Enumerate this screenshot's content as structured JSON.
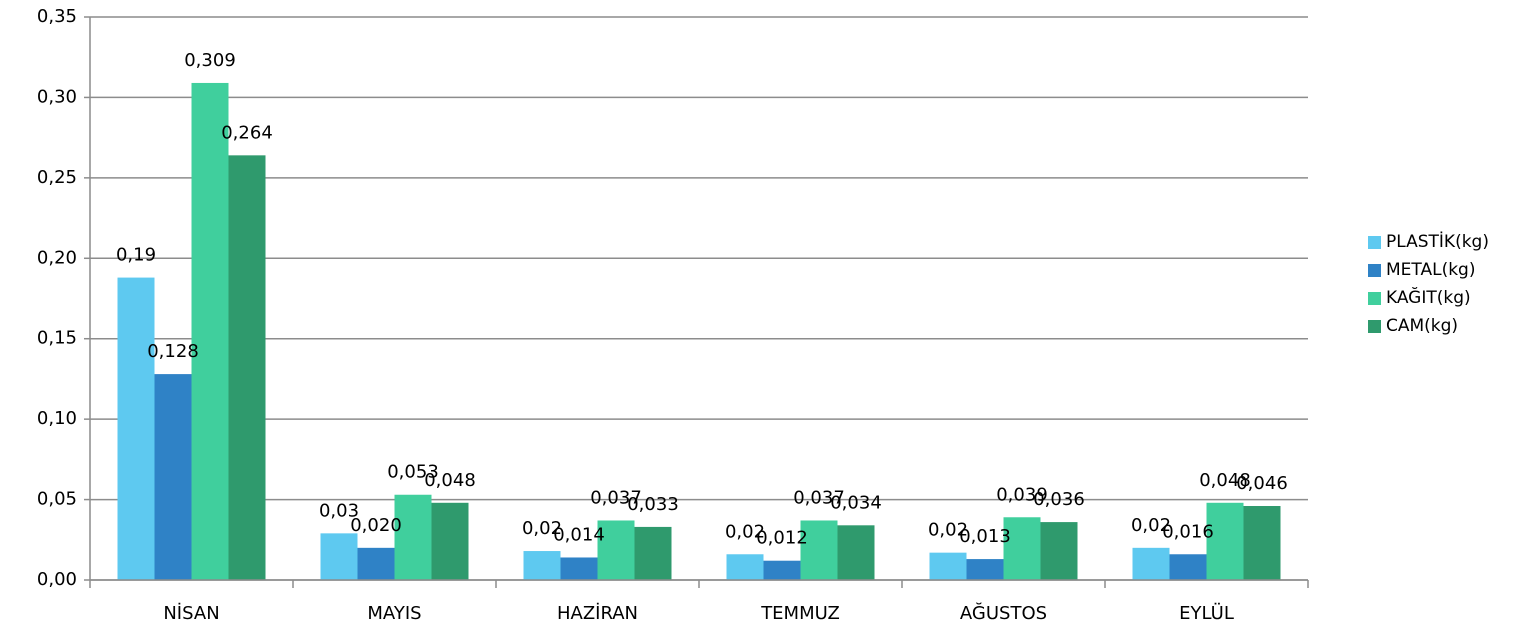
{
  "chart_data": {
    "type": "bar",
    "categories": [
      "NİSAN",
      "MAYIS",
      "HAZİRAN",
      "TEMMUZ",
      "AĞUSTOS",
      "EYLÜL"
    ],
    "series": [
      {
        "name": "PLASTİK(kg)",
        "color": "#5ec9f0",
        "values": [
          0.188,
          0.029,
          0.018,
          0.016,
          0.017,
          0.02
        ],
        "value_labels": [
          "0,19",
          "0,03",
          "0,02",
          "0,02",
          "0,02",
          "0,02"
        ]
      },
      {
        "name": "METAL(kg)",
        "color": "#2f82c6",
        "values": [
          0.128,
          0.02,
          0.014,
          0.012,
          0.013,
          0.016
        ],
        "value_labels": [
          "0,128",
          "0,020",
          "0,014",
          "0,012",
          "0,013",
          "0,016"
        ]
      },
      {
        "name": "KAĞIT(kg)",
        "color": "#40cf9d",
        "values": [
          0.309,
          0.053,
          0.037,
          0.037,
          0.039,
          0.048
        ],
        "value_labels": [
          "0,309",
          "0,053",
          "0,037",
          "0,037",
          "0,039",
          "0,048"
        ]
      },
      {
        "name": "CAM(kg)",
        "color": "#2f9a6d",
        "values": [
          0.264,
          0.048,
          0.033,
          0.034,
          0.036,
          0.046
        ],
        "value_labels": [
          "0,264",
          "0,048",
          "0,033",
          "0,034",
          "0,036",
          "0,046"
        ]
      }
    ],
    "ylim": [
      0,
      0.35
    ],
    "yticks": [
      {
        "value": 0,
        "label": "0,00"
      },
      {
        "value": 0.05,
        "label": "0,05"
      },
      {
        "value": 0.1,
        "label": "0,10"
      },
      {
        "value": 0.15,
        "label": "0,15"
      },
      {
        "value": 0.2,
        "label": "0,20"
      },
      {
        "value": 0.25,
        "label": "0,25"
      },
      {
        "value": 0.3,
        "label": "0,30"
      },
      {
        "value": 0.35,
        "label": "0,35"
      }
    ],
    "grid": true,
    "legend": "right"
  }
}
